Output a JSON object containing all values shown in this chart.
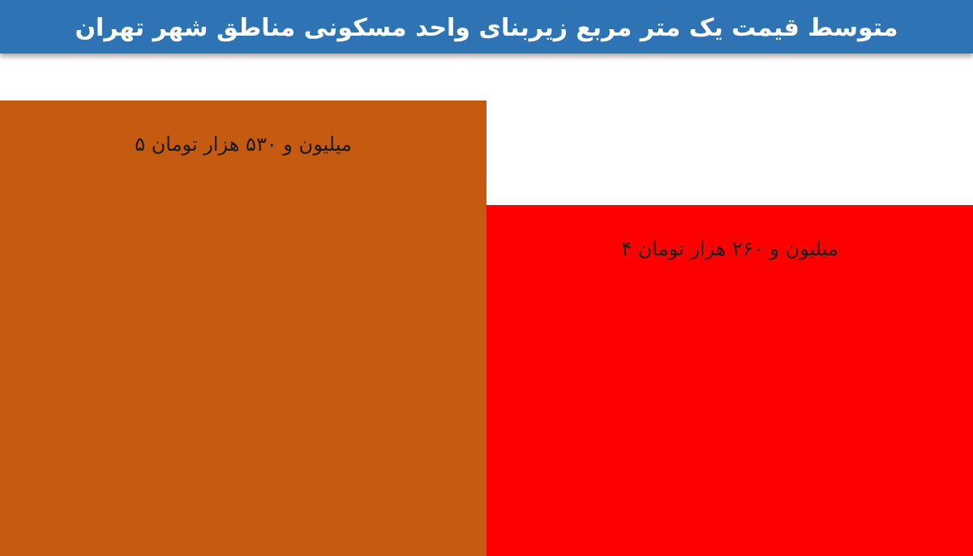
{
  "chart_data": {
    "type": "bar",
    "title": "متوسط قیمت یک متر مربع زیربنای واحد مسکونی مناطق شهر تهران",
    "categories": [
      null,
      null
    ],
    "values": [
      5.53,
      4.26
    ],
    "colors": [
      "#c55a11",
      "#ff0000"
    ],
    "value_labels": [
      "میلیون و ۵۳۰ هزار تومان ۵",
      "میلیون و ۲۶۰ هزار تومان ۴"
    ]
  }
}
